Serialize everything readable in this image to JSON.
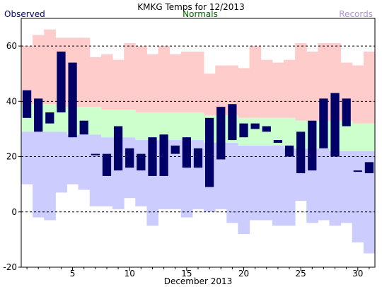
{
  "chart_data": {
    "type": "bar",
    "title": "KMKG Temps for 12/2013",
    "xlabel": "December 2013",
    "ylabel": "",
    "legend": {
      "observed": "Observed",
      "normals": "Normals",
      "records": "Records"
    },
    "legend_placement": "top",
    "colors": {
      "observed": "#000066",
      "normals": "#ccffcc",
      "record_high": "#ffcccc",
      "record_low": "#ccccff",
      "observed_label": "#000080",
      "normals_label": "#006400",
      "records_label": "#b090d0"
    },
    "ylim": [
      -20,
      70
    ],
    "yticks": [
      -20,
      0,
      20,
      40,
      60
    ],
    "xticks": [
      5,
      10,
      15,
      20,
      25,
      30
    ],
    "grid": "dashed horizontal at 0, 20, 40, 60",
    "days": [
      1,
      2,
      3,
      4,
      5,
      6,
      7,
      8,
      9,
      10,
      11,
      12,
      13,
      14,
      15,
      16,
      17,
      18,
      19,
      20,
      21,
      22,
      23,
      24,
      25,
      26,
      27,
      28,
      29,
      30,
      31
    ],
    "observed_high": [
      44,
      41,
      36,
      58,
      54,
      33,
      21,
      21,
      31,
      23,
      21,
      27,
      28,
      24,
      27,
      23,
      34,
      38,
      39,
      32,
      32,
      31,
      26,
      24,
      29,
      33,
      41,
      43,
      41,
      15,
      18
    ],
    "observed_low": [
      34,
      29,
      32,
      36,
      27,
      28,
      21,
      13,
      15,
      16,
      15,
      13,
      13,
      21,
      16,
      16,
      9,
      19,
      26,
      27,
      30,
      29,
      25,
      20,
      14,
      15,
      23,
      20,
      31,
      19,
      14
    ],
    "normal_high": [
      39,
      39,
      39,
      38,
      38,
      38,
      38,
      37,
      37,
      37,
      36,
      36,
      36,
      36,
      36,
      36,
      35,
      35,
      35,
      34,
      34,
      34,
      34,
      34,
      33,
      33,
      33,
      33,
      33,
      32,
      32
    ],
    "normal_low": [
      29,
      29,
      29,
      29,
      28,
      28,
      28,
      27,
      27,
      27,
      26,
      26,
      26,
      26,
      26,
      26,
      25,
      25,
      25,
      24,
      24,
      24,
      24,
      23,
      23,
      23,
      23,
      22,
      22,
      22,
      22
    ],
    "record_high": [
      60,
      64,
      66,
      63,
      63,
      63,
      56,
      57,
      55,
      61,
      60,
      57,
      60,
      57,
      58,
      58,
      50,
      53,
      53,
      52,
      60,
      55,
      54,
      55,
      61,
      58,
      61,
      61,
      54,
      53,
      58
    ],
    "record_low": [
      10,
      -2,
      -3,
      7,
      10,
      8,
      2,
      2,
      1,
      5,
      2,
      -5,
      1,
      1,
      -2,
      1,
      0,
      1,
      -4,
      -8,
      -3,
      -3,
      -5,
      -5,
      4,
      -4,
      -3,
      -5,
      -4,
      -11,
      -15
    ]
  }
}
